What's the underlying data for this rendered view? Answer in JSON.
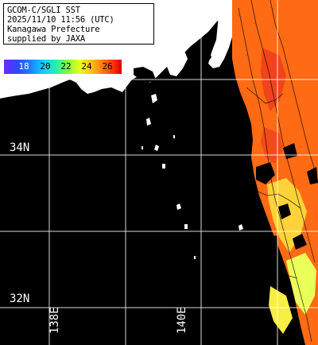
{
  "info": {
    "lines": [
      "GCOM-C/SGLI SST",
      "2025/11/10 11:56 (UTC)",
      "Kanagawa Prefecture",
      "supplied by JAXA"
    ]
  },
  "colorbar": {
    "ticks": [
      "18",
      "20",
      "22",
      "24",
      "26"
    ],
    "colors": [
      "#6a2cff",
      "#1c8cff",
      "#22f0b0",
      "#e8ff22",
      "#ff7a12",
      "#d40000"
    ]
  },
  "grid": {
    "lat_labels": [
      "34N",
      "32N"
    ],
    "lon_labels": [
      "138E",
      "140E"
    ]
  },
  "colors": {
    "land": "#ffffff",
    "no_data": "#000000",
    "grid_line": "#ffffff",
    "sst_warm": "#ff6a14",
    "sst_mid": "#ffc21a",
    "sst_cool": "#e8ff3a"
  }
}
